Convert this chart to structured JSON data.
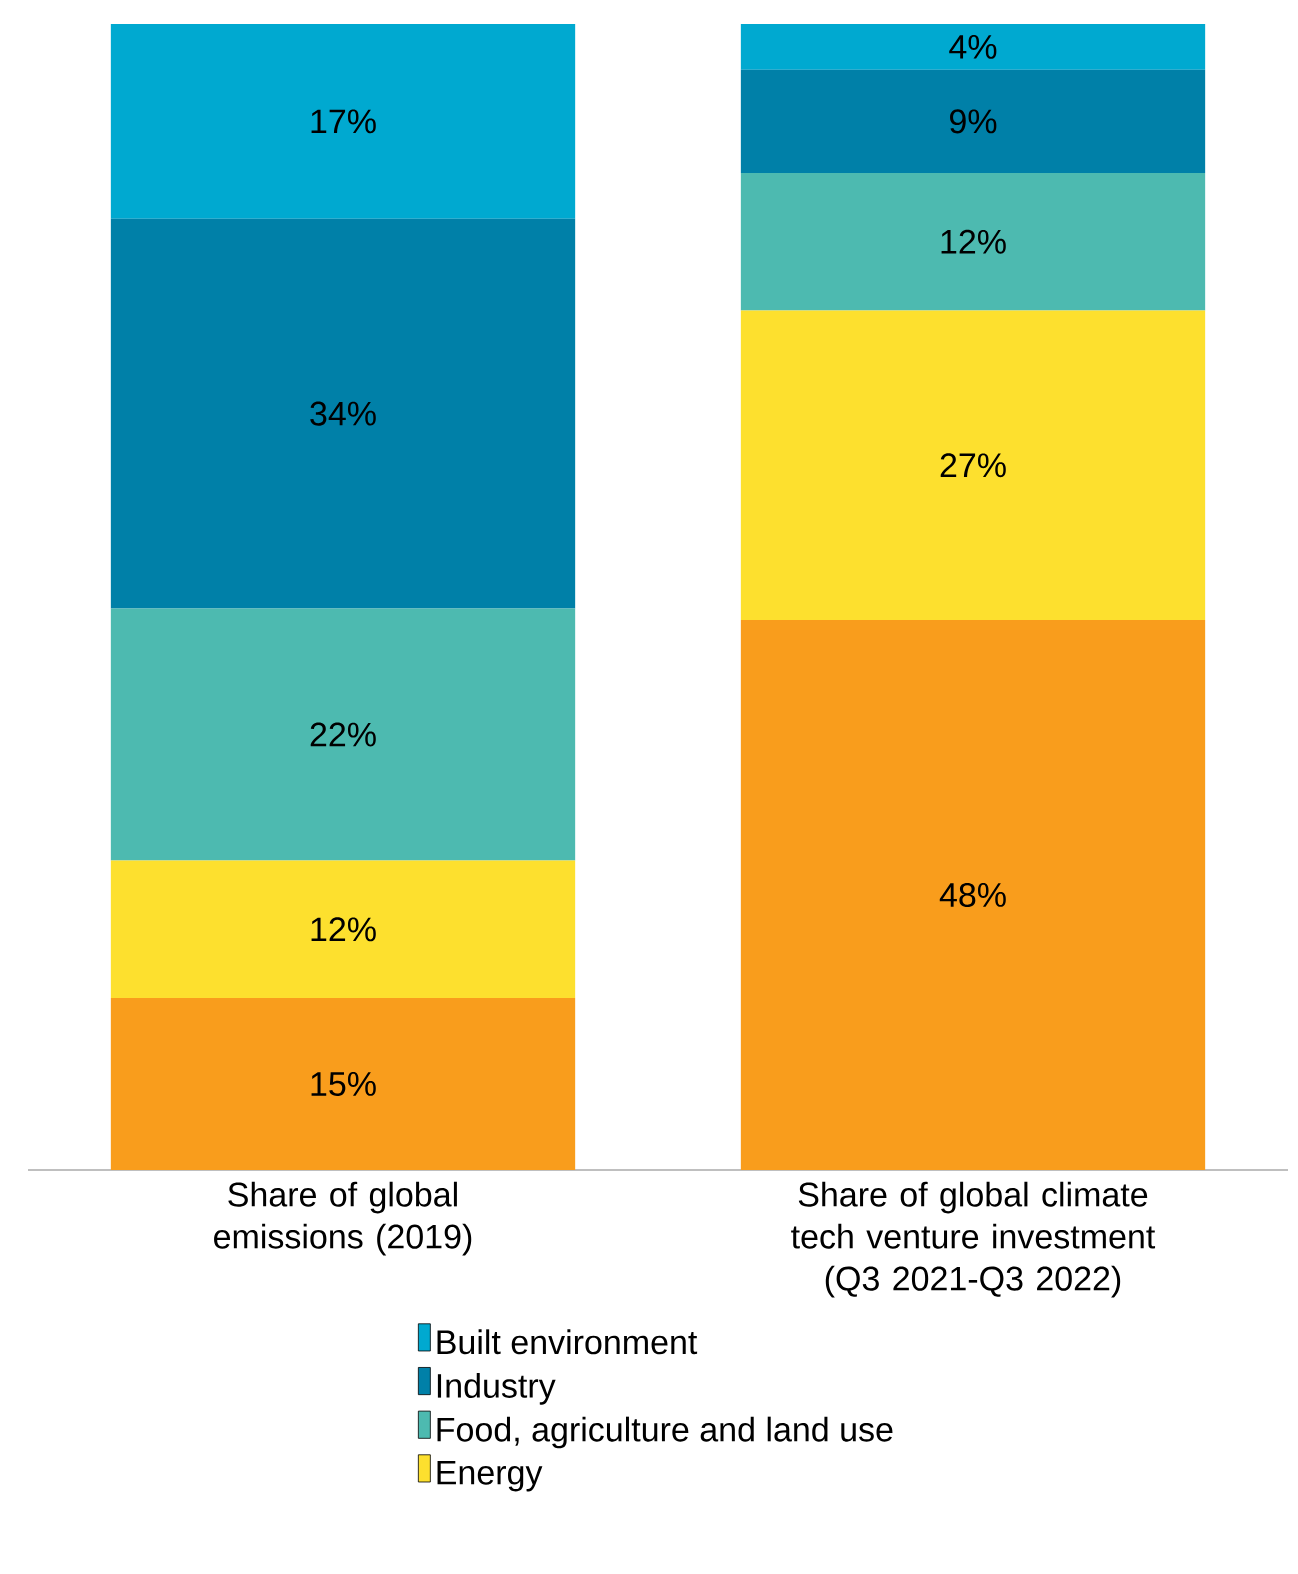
{
  "chart_data": {
    "type": "bar",
    "stacked": true,
    "categories": [
      "Share of global emissions (2019)",
      "Share of global climate tech venture investment (Q3 2021-Q3 2022)"
    ],
    "ylim": [
      0,
      100
    ],
    "legend": "bottom",
    "series": [
      {
        "color": "#f99d1c",
        "values": [
          15,
          48
        ],
        "value_labels": [
          "15%",
          "48%"
        ]
      },
      {
        "name": "Energy",
        "color": "#fde02e",
        "values": [
          12,
          27
        ],
        "value_labels": [
          "12%",
          "27%"
        ]
      },
      {
        "name": "Food, agriculture and land use",
        "color": "#4dbab0",
        "values": [
          22,
          12
        ],
        "value_labels": [
          "22%",
          "12%"
        ]
      },
      {
        "name": "Industry",
        "color": "#0080a8",
        "values": [
          34,
          9
        ],
        "value_labels": [
          "34%",
          "9%"
        ]
      },
      {
        "name": "Built environment",
        "color": "#00a9d0",
        "values": [
          17,
          4
        ],
        "value_labels": [
          "17%",
          "4%"
        ]
      }
    ]
  }
}
